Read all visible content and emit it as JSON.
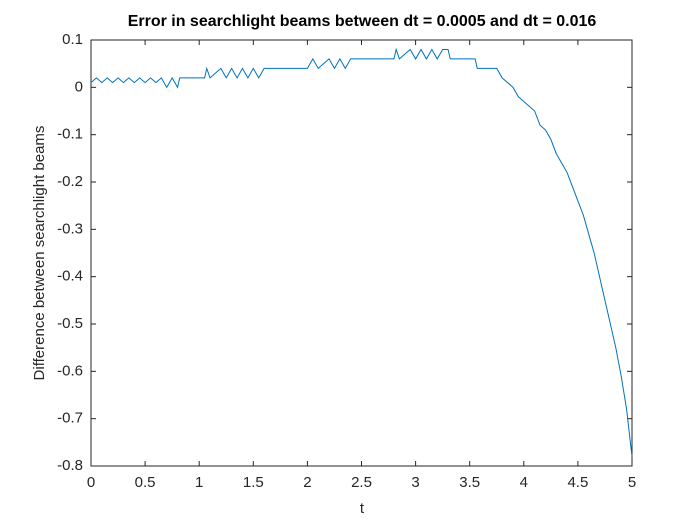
{
  "chart_data": {
    "type": "line",
    "title": "Error in searchlight beams between dt = 0.0005 and dt = 0.016",
    "x_label": "t",
    "y_label": "Difference between searchlight beams",
    "color": "#0072bd",
    "x": [
      0,
      0.05,
      0.1,
      0.15,
      0.2,
      0.25,
      0.3,
      0.35,
      0.4,
      0.45,
      0.5,
      0.55,
      0.6,
      0.65,
      0.7,
      0.75,
      0.8,
      0.82,
      1.05,
      1.07,
      1.1,
      1.2,
      1.25,
      1.3,
      1.35,
      1.4,
      1.45,
      1.5,
      1.55,
      1.6,
      2.0,
      2.05,
      2.1,
      2.2,
      2.25,
      2.3,
      2.35,
      2.4,
      2.45,
      2.8,
      2.82,
      2.85,
      2.95,
      3.0,
      3.05,
      3.1,
      3.15,
      3.2,
      3.25,
      3.3,
      3.32,
      3.55,
      3.57,
      3.75,
      3.8,
      3.85,
      3.9,
      3.95,
      4.0,
      4.05,
      4.1,
      4.15,
      4.2,
      4.25,
      4.3,
      4.35,
      4.4,
      4.45,
      4.5,
      4.55,
      4.6,
      4.65,
      4.7,
      4.75,
      4.8,
      4.85,
      4.9,
      4.95,
      5.0
    ],
    "values": [
      0.01,
      0.02,
      0.01,
      0.02,
      0.01,
      0.02,
      0.01,
      0.02,
      0.01,
      0.02,
      0.01,
      0.02,
      0.01,
      0.02,
      0,
      0.02,
      0,
      0.02,
      0.02,
      0.04,
      0.02,
      0.04,
      0.02,
      0.04,
      0.02,
      0.04,
      0.02,
      0.04,
      0.02,
      0.04,
      0.04,
      0.06,
      0.04,
      0.06,
      0.04,
      0.06,
      0.04,
      0.06,
      0.06,
      0.06,
      0.08,
      0.06,
      0.08,
      0.06,
      0.08,
      0.06,
      0.08,
      0.06,
      0.08,
      0.08,
      0.06,
      0.06,
      0.04,
      0.04,
      0.02,
      0.01,
      0,
      -0.02,
      -0.03,
      -0.04,
      -0.05,
      -0.08,
      -0.09,
      -0.11,
      -0.14,
      -0.16,
      -0.18,
      -0.21,
      -0.24,
      -0.27,
      -0.31,
      -0.35,
      -0.4,
      -0.45,
      -0.5,
      -0.55,
      -0.61,
      -0.68,
      -0.78
    ],
    "xlim": [
      0,
      5
    ],
    "xticks": [
      0,
      0.5,
      1,
      1.5,
      2,
      2.5,
      3,
      3.5,
      4,
      4.5,
      5
    ],
    "ylim": [
      -0.8,
      0.1
    ],
    "yticks": [
      0.1,
      0,
      -0.1,
      -0.2,
      -0.3,
      -0.4,
      -0.5,
      -0.6,
      -0.7,
      -0.8
    ]
  }
}
